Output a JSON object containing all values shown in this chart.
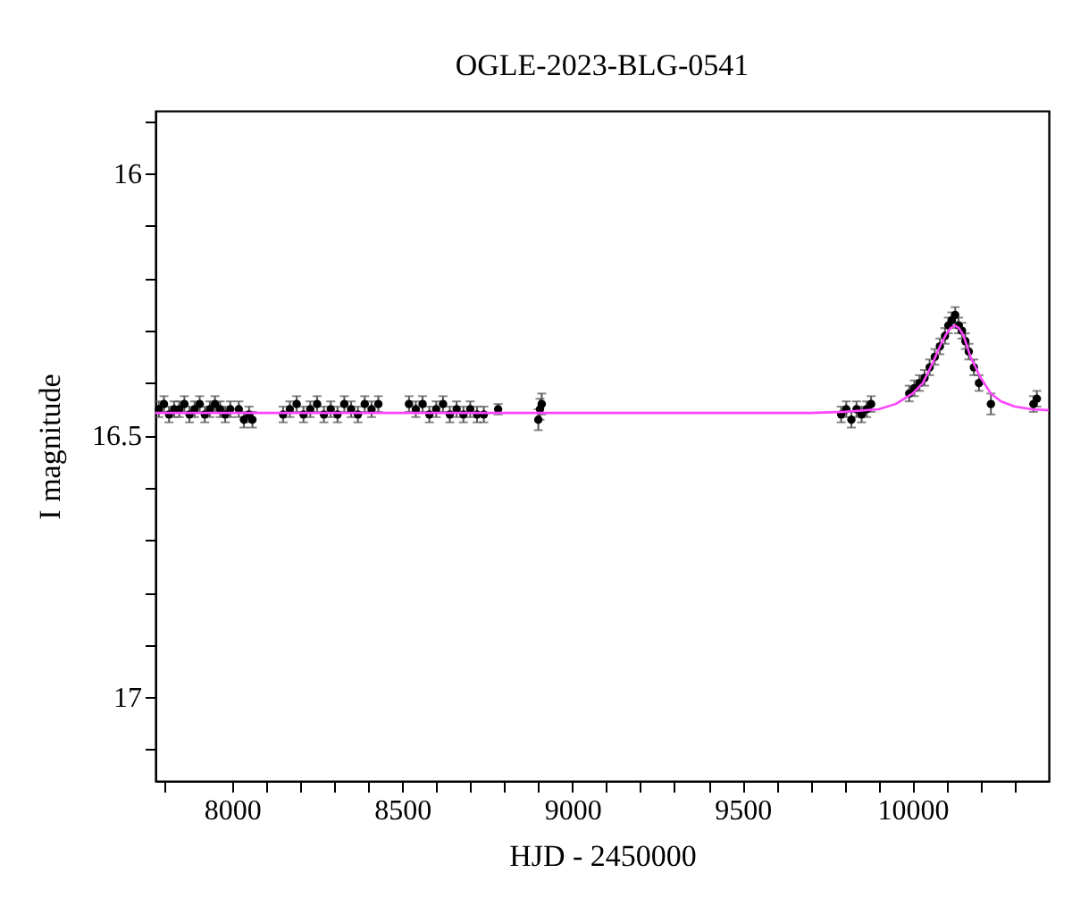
{
  "chart_data": {
    "type": "scatter",
    "title": "OGLE-2023-BLG-0541",
    "xlabel": "HJD - 2450000",
    "ylabel": "I magnitude",
    "xlim": [
      7775,
      10400
    ],
    "ylim": [
      17.16,
      15.88
    ],
    "xticks": [
      {
        "value": 7800,
        "label": null
      },
      8000,
      {
        "value": 8100,
        "label": null
      },
      {
        "value": 8200,
        "label": null
      },
      {
        "value": 8300,
        "label": null
      },
      {
        "value": 8400,
        "label": null
      },
      8500,
      {
        "value": 8600,
        "label": null
      },
      {
        "value": 8700,
        "label": null
      },
      {
        "value": 8800,
        "label": null
      },
      {
        "value": 8900,
        "label": null
      },
      9000,
      {
        "value": 9100,
        "label": null
      },
      {
        "value": 9200,
        "label": null
      },
      {
        "value": 9300,
        "label": null
      },
      {
        "value": 9400,
        "label": null
      },
      9500,
      {
        "value": 9600,
        "label": null
      },
      {
        "value": 9700,
        "label": null
      },
      {
        "value": 9800,
        "label": null
      },
      {
        "value": 9900,
        "label": null
      },
      10000,
      {
        "value": 10100,
        "label": null
      },
      {
        "value": 10200,
        "label": null
      },
      {
        "value": 10300,
        "label": null
      }
    ],
    "yticks": [
      {
        "value": 15.9,
        "label": null
      },
      16,
      {
        "value": 16.1,
        "label": null
      },
      {
        "value": 16.2,
        "label": null
      },
      {
        "value": 16.3,
        "label": null
      },
      {
        "value": 16.4,
        "label": null
      },
      16.5,
      {
        "value": 16.6,
        "label": null
      },
      {
        "value": 16.7,
        "label": null
      },
      {
        "value": 16.8,
        "label": null
      },
      {
        "value": 16.9,
        "label": null
      },
      17,
      {
        "value": 17.1,
        "label": null
      }
    ],
    "grid": false,
    "series": [
      {
        "type": "scatter",
        "color": "#000000",
        "marker": "circle",
        "x": [
          7785,
          7800,
          7815,
          7830,
          7845,
          7860,
          7875,
          7890,
          7905,
          7920,
          7935,
          7950,
          7965,
          7980,
          7995,
          8020,
          8035,
          8050,
          8060,
          8150,
          8170,
          8190,
          8210,
          8230,
          8250,
          8270,
          8290,
          8310,
          8330,
          8350,
          8370,
          8390,
          8410,
          8430,
          8520,
          8540,
          8560,
          8580,
          8600,
          8620,
          8640,
          8660,
          8680,
          8700,
          8720,
          8740,
          8782,
          8900,
          8905,
          8910,
          9790,
          9805,
          9820,
          9835,
          9850,
          9865,
          9878,
          9990,
          10005,
          10020,
          10035,
          10050,
          10065,
          10080,
          10095,
          10105,
          10115,
          10125,
          10135,
          10145,
          10155,
          10165,
          10180,
          10195,
          10230,
          10355,
          10365
        ],
        "values": [
          16.45,
          16.44,
          16.46,
          16.45,
          16.45,
          16.44,
          16.46,
          16.45,
          16.44,
          16.46,
          16.45,
          16.44,
          16.45,
          16.46,
          16.45,
          16.45,
          16.47,
          16.46,
          16.47,
          16.46,
          16.45,
          16.44,
          16.46,
          16.45,
          16.44,
          16.46,
          16.45,
          16.46,
          16.44,
          16.45,
          16.46,
          16.44,
          16.45,
          16.44,
          16.44,
          16.45,
          16.44,
          16.46,
          16.45,
          16.44,
          16.46,
          16.45,
          16.46,
          16.45,
          16.46,
          16.46,
          16.45,
          16.47,
          16.45,
          16.44,
          16.46,
          16.45,
          16.47,
          16.45,
          16.46,
          16.45,
          16.44,
          16.42,
          16.41,
          16.4,
          16.39,
          16.37,
          16.35,
          16.33,
          16.31,
          16.29,
          16.28,
          16.27,
          16.29,
          16.3,
          16.32,
          16.34,
          16.37,
          16.4,
          16.44,
          16.44,
          16.43
        ],
        "errors": [
          0.015,
          0.015,
          0.015,
          0.015,
          0.015,
          0.015,
          0.015,
          0.015,
          0.015,
          0.015,
          0.015,
          0.015,
          0.015,
          0.015,
          0.015,
          0.015,
          0.015,
          0.015,
          0.015,
          0.015,
          0.015,
          0.015,
          0.015,
          0.015,
          0.015,
          0.015,
          0.015,
          0.015,
          0.015,
          0.015,
          0.015,
          0.015,
          0.015,
          0.015,
          0.015,
          0.015,
          0.015,
          0.015,
          0.015,
          0.015,
          0.015,
          0.015,
          0.015,
          0.015,
          0.015,
          0.015,
          0.01,
          0.02,
          0.02,
          0.02,
          0.015,
          0.015,
          0.015,
          0.015,
          0.015,
          0.015,
          0.015,
          0.015,
          0.015,
          0.015,
          0.015,
          0.015,
          0.015,
          0.015,
          0.015,
          0.015,
          0.015,
          0.015,
          0.015,
          0.015,
          0.015,
          0.015,
          0.015,
          0.015,
          0.02,
          0.015,
          0.015
        ]
      },
      {
        "type": "line",
        "color": "#ff44ff",
        "line_style": "solid",
        "x": [
          7775,
          9700,
          9800,
          9900,
          9950,
          10000,
          10030,
          10060,
          10080,
          10100,
          10112,
          10124,
          10136,
          10150,
          10170,
          10200,
          10230,
          10260,
          10300,
          10350,
          10400
        ],
        "values": [
          16.457,
          16.457,
          16.455,
          16.45,
          16.44,
          16.42,
          16.4,
          16.36,
          16.33,
          16.305,
          16.295,
          16.29,
          16.295,
          16.31,
          16.35,
          16.39,
          16.42,
          16.435,
          16.445,
          16.45,
          16.452
        ]
      }
    ]
  }
}
